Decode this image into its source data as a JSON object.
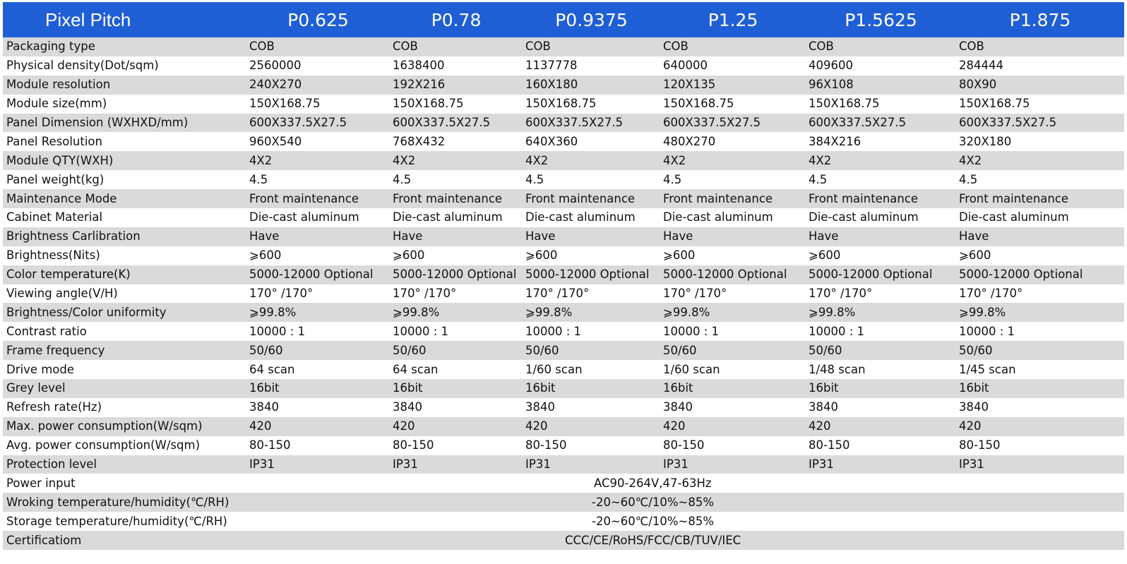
{
  "table": {
    "header_label": "Pixel Pitch",
    "pitches": [
      "P0.625",
      "P0.78",
      "P0.9375",
      "P1.25",
      "P1.5625",
      "P1.875"
    ],
    "rows": [
      {
        "label": "Packaging type",
        "values": [
          "COB",
          "COB",
          "COB",
          "COB",
          "COB",
          "COB"
        ]
      },
      {
        "label": "Physical density(Dot/sqm)",
        "values": [
          "2560000",
          "1638400",
          "1137778",
          "640000",
          "409600",
          "284444"
        ]
      },
      {
        "label": "Module resolution",
        "values": [
          "240X270",
          "192X216",
          "160X180",
          "120X135",
          "96X108",
          "80X90"
        ]
      },
      {
        "label": "Module size(mm)",
        "values": [
          "150X168.75",
          "150X168.75",
          "150X168.75",
          "150X168.75",
          "150X168.75",
          "150X168.75"
        ]
      },
      {
        "label": "Panel Dimension (WXHXD/mm)",
        "values": [
          "600X337.5X27.5",
          "600X337.5X27.5",
          "600X337.5X27.5",
          "600X337.5X27.5",
          "600X337.5X27.5",
          "600X337.5X27.5"
        ]
      },
      {
        "label": "Panel Resolution",
        "values": [
          "960X540",
          "768X432",
          "640X360",
          "480X270",
          "384X216",
          "320X180"
        ]
      },
      {
        "label": "Module QTY(WXH)",
        "values": [
          "4X2",
          "4X2",
          "4X2",
          "4X2",
          "4X2",
          "4X2"
        ]
      },
      {
        "label": "Panel weight(kg)",
        "values": [
          "4.5",
          "4.5",
          "4.5",
          "4.5",
          "4.5",
          "4.5"
        ]
      },
      {
        "label": "Maintenance Mode",
        "values": [
          "Front maintenance",
          "Front maintenance",
          "Front maintenance",
          "Front maintenance",
          "Front maintenance",
          "Front maintenance"
        ]
      },
      {
        "label": "Cabinet Material",
        "values": [
          "Die-cast aluminum",
          "Die-cast aluminum",
          "Die-cast aluminum",
          "Die-cast aluminum",
          "Die-cast aluminum",
          "Die-cast aluminum"
        ]
      },
      {
        "label": "Brightness Carlibration",
        "values": [
          "Have",
          "Have",
          "Have",
          "Have",
          "Have",
          "Have"
        ]
      },
      {
        "label": "Brightness(Nits)",
        "values": [
          "⩾600",
          "⩾600",
          "⩾600",
          "⩾600",
          "⩾600",
          "⩾600"
        ]
      },
      {
        "label": "Color temperature(K)",
        "values": [
          "5000-12000 Optional",
          "5000-12000 Optional",
          "5000-12000 Optional",
          "5000-12000 Optional",
          "5000-12000 Optional",
          "5000-12000 Optional"
        ]
      },
      {
        "label": "Viewing angle(V/H)",
        "values": [
          "170° /170°",
          "170° /170°",
          "170° /170°",
          "170° /170°",
          "170° /170°",
          "170° /170°"
        ]
      },
      {
        "label": "Brightness/Color uniformity",
        "values": [
          "⩾99.8%",
          "⩾99.8%",
          "⩾99.8%",
          "⩾99.8%",
          "⩾99.8%",
          "⩾99.8%"
        ]
      },
      {
        "label": "Contrast ratio",
        "values": [
          "10000 : 1",
          "10000 : 1",
          "10000 : 1",
          "10000 : 1",
          "10000 : 1",
          "10000 : 1"
        ]
      },
      {
        "label": "Frame frequency",
        "values": [
          "50/60",
          "50/60",
          "50/60",
          "50/60",
          "50/60",
          "50/60"
        ]
      },
      {
        "label": "Drive mode",
        "values": [
          "64 scan",
          "64 scan",
          "1/60 scan",
          "1/60 scan",
          "1/48 scan",
          "1/45 scan"
        ]
      },
      {
        "label": "Grey level",
        "values": [
          "16bit",
          "16bit",
          "16bit",
          "16bit",
          "16bit",
          "16bit"
        ]
      },
      {
        "label": "Refresh rate(Hz)",
        "values": [
          "3840",
          "3840",
          "3840",
          "3840",
          "3840",
          "3840"
        ]
      },
      {
        "label": "Max. power consumption(W/sqm)",
        "values": [
          "420",
          "420",
          "420",
          "420",
          "420",
          "420"
        ]
      },
      {
        "label": "Avg. power consumption(W/sqm)",
        "values": [
          "80-150",
          "80-150",
          "80-150",
          "80-150",
          "80-150",
          "80-150"
        ]
      },
      {
        "label": "Protection level",
        "values": [
          "IP31",
          "IP31",
          "IP31",
          "IP31",
          "IP31",
          "IP31"
        ]
      }
    ],
    "span_rows": [
      {
        "label": "Power input",
        "value": "AC90-264V,47-63Hz"
      },
      {
        "label": "Wroking temperature/humidity(℃/RH)",
        "value": "-20~60℃/10%~85%"
      },
      {
        "label": "Storage  temperature/humidity(℃/RH)",
        "value": "-20~60℃/10%~85%"
      },
      {
        "label": "Certificatiom",
        "value": "CCC/CE/RoHS/FCC/CB/TUV/IEC"
      }
    ]
  },
  "colors": {
    "header_bg": "#1f5fd6",
    "stripe": "#dadada"
  }
}
